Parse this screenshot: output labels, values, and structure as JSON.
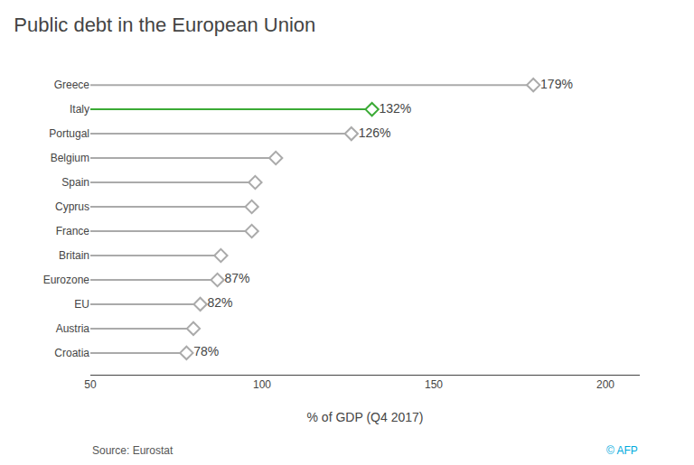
{
  "chart_data": {
    "type": "lollipop",
    "title": "Public debt in the European Union",
    "categories": [
      "Greece",
      "Italy",
      "Portugal",
      "Belgium",
      "Spain",
      "Cyprus",
      "France",
      "Britain",
      "Eurozone",
      "EU",
      "Austria",
      "Croatia"
    ],
    "values": [
      179,
      132,
      126,
      104,
      98,
      97,
      97,
      88,
      87,
      82,
      80,
      78
    ],
    "value_labels": [
      "179%",
      "132%",
      "126%",
      null,
      null,
      null,
      null,
      null,
      "87%",
      "82%",
      null,
      "78%"
    ],
    "colors": [
      "#aaaaaa",
      "#3aaa35",
      "#aaaaaa",
      "#aaaaaa",
      "#aaaaaa",
      "#aaaaaa",
      "#aaaaaa",
      "#aaaaaa",
      "#aaaaaa",
      "#aaaaaa",
      "#aaaaaa",
      "#aaaaaa"
    ],
    "orientation": "horizontal",
    "marker": "diamond",
    "xlabel": "% of GDP (Q4 2017)",
    "xlim": [
      50,
      210
    ],
    "xticks": [
      50,
      100,
      150,
      200
    ],
    "grid": false,
    "data_labels": true,
    "annotations": [
      "Source: Eurostat",
      "© AFP"
    ]
  }
}
